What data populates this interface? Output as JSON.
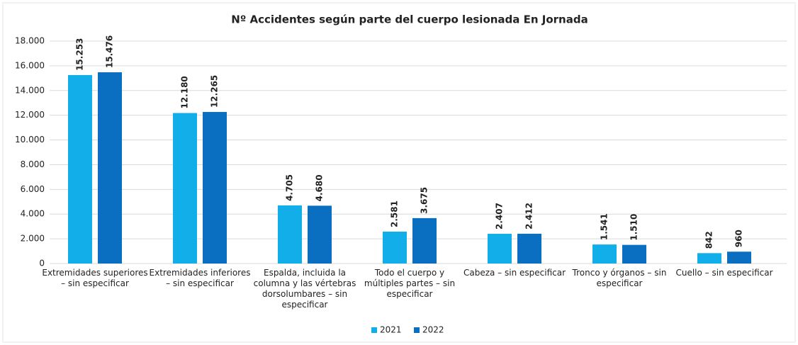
{
  "chart_data": {
    "type": "bar",
    "title": "Nº Accidentes según parte del cuerpo lesionada En Jornada",
    "categories": [
      "Extremidades superiores – sin especificar",
      "Extremidades inferiores – sin especificar",
      "Espalda, incluida la columna y las vértebras dorsolumbares – sin especificar",
      "Todo el cuerpo y múltiples partes – sin especificar",
      "Cabeza – sin especificar",
      "Tronco y órganos – sin especificar",
      "Cuello – sin especificar"
    ],
    "series": [
      {
        "name": "2021",
        "color": "#12aeea",
        "values": [
          15253,
          12180,
          4705,
          2581,
          2407,
          1541,
          842
        ],
        "value_labels": [
          "15.253",
          "12.180",
          "4.705",
          "2.581",
          "2.407",
          "1.541",
          "842"
        ]
      },
      {
        "name": "2022",
        "color": "#0a6fc0",
        "values": [
          15476,
          12265,
          4680,
          3675,
          2412,
          1510,
          960
        ],
        "value_labels": [
          "15.476",
          "12.265",
          "4.680",
          "3.675",
          "2.412",
          "1.510",
          "960"
        ]
      }
    ],
    "ylim": [
      0,
      18000
    ],
    "yticks": [
      0,
      {
        "value": 2000,
        "label": "2.000"
      },
      {
        "value": 4000,
        "label": "4.000"
      },
      {
        "value": 6000,
        "label": "6.000"
      },
      {
        "value": 8000,
        "label": "8.000"
      },
      {
        "value": 10000,
        "label": "10.000"
      },
      {
        "value": 12000,
        "label": "12.000"
      },
      {
        "value": 14000,
        "label": "14.000"
      },
      {
        "value": 16000,
        "label": "16.000"
      },
      {
        "value": 18000,
        "label": "18.000"
      }
    ],
    "grid": true,
    "legend": "bottom"
  }
}
